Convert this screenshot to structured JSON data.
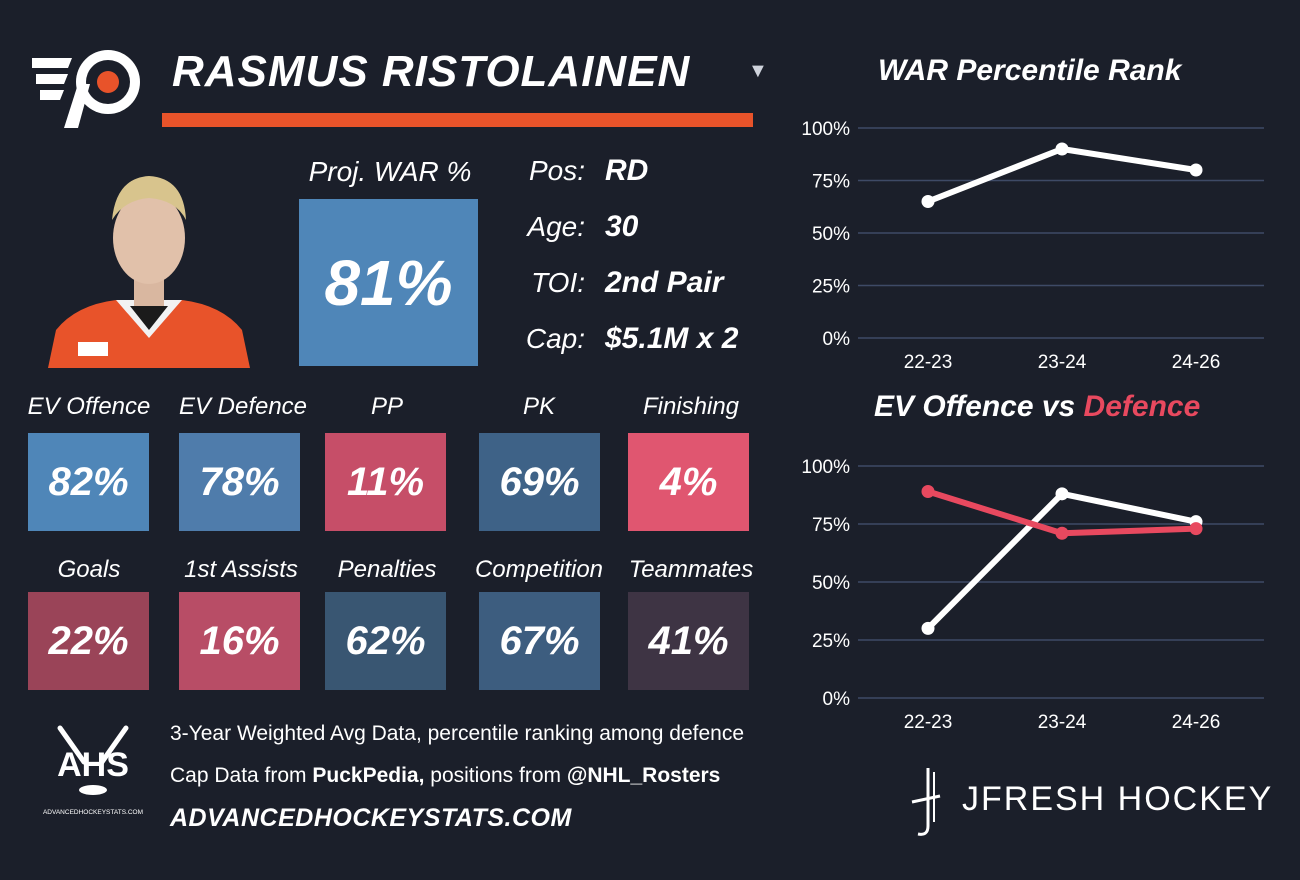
{
  "player": {
    "name": "RASMUS RISTOLAINEN",
    "dropdown_icon": "caret-down-icon",
    "team_logo": "flyers-logo"
  },
  "projection": {
    "label": "Proj. WAR %",
    "value": "81%",
    "color": "#4f86b8"
  },
  "info": [
    {
      "label": "Pos:",
      "value": "RD"
    },
    {
      "label": "Age:",
      "value": "30"
    },
    {
      "label": "TOI:",
      "value": "2nd Pair"
    },
    {
      "label": "Cap:",
      "value": "$5.1M x 2"
    }
  ],
  "stats_row1": [
    {
      "label": "EV Offence",
      "value": "82%",
      "color": "#4f86b8"
    },
    {
      "label": "EV Defence",
      "value": "78%",
      "color": "#4f7cab"
    },
    {
      "label": "PP",
      "value": "11%",
      "color": "#c64e68"
    },
    {
      "label": "PK",
      "value": "69%",
      "color": "#3e6287"
    },
    {
      "label": "Finishing",
      "value": "4%",
      "color": "#e05670"
    }
  ],
  "stats_row2": [
    {
      "label": "Goals",
      "value": "22%",
      "color": "#9a4458"
    },
    {
      "label": "1st Assists",
      "value": "16%",
      "color": "#b84d66"
    },
    {
      "label": "Penalties",
      "value": "62%",
      "color": "#395672"
    },
    {
      "label": "Competition",
      "value": "67%",
      "color": "#3d5d7f"
    },
    {
      "label": "Teammates",
      "value": "41%",
      "color": "#3e3444"
    }
  ],
  "chart_data": [
    {
      "type": "line",
      "title": "WAR Percentile Rank",
      "categories": [
        "22-23",
        "23-24",
        "24-26"
      ],
      "yticks": [
        "100%",
        "75%",
        "50%",
        "25%",
        "0%"
      ],
      "ylim": [
        0,
        100
      ],
      "grid": true,
      "series": [
        {
          "values": [
            65,
            90,
            80
          ],
          "color": "#ffffff"
        }
      ]
    },
    {
      "type": "line",
      "title_part1": "EV Offence vs ",
      "title_part2": "Defence",
      "title_part2_color": "#e8495f",
      "categories": [
        "22-23",
        "23-24",
        "24-26"
      ],
      "yticks": [
        "100%",
        "75%",
        "50%",
        "25%",
        "0%"
      ],
      "ylim": [
        0,
        100
      ],
      "grid": true,
      "series": [
        {
          "values": [
            30,
            88,
            76
          ],
          "color": "#ffffff"
        },
        {
          "values": [
            89,
            71,
            73
          ],
          "color": "#e8495f"
        }
      ]
    }
  ],
  "footer": {
    "line1": "3-Year Weighted Avg Data, percentile ranking among defence",
    "line2_pre": "Cap Data from ",
    "line2_b1": "PuckPedia,",
    "line2_mid": " positions from ",
    "line2_b2": "@NHL_Rosters",
    "url": "ADVANCEDHOCKEYSTATS.COM",
    "ahs_logo_text": "AHS",
    "ahs_logo_subtext": "ADVANCEDHOCKEYSTATS.COM",
    "brand": "JFRESH HOCKEY"
  }
}
